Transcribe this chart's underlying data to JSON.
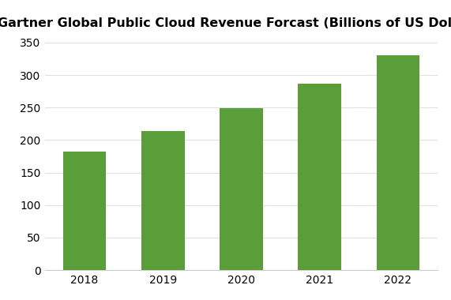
{
  "title": "Gartner Global Public Cloud Revenue Forcast (Billions of US Dollars)",
  "categories": [
    "2018",
    "2019",
    "2020",
    "2021",
    "2022"
  ],
  "values": [
    182,
    214,
    249,
    287,
    330
  ],
  "bar_color": "#5a9e3a",
  "ylim": [
    0,
    360
  ],
  "yticks": [
    0,
    50,
    100,
    150,
    200,
    250,
    300,
    350
  ],
  "background_color": "#ffffff",
  "grid_color": "#e0e0e0",
  "title_fontsize": 11.5,
  "tick_fontsize": 10,
  "bar_width": 0.55
}
